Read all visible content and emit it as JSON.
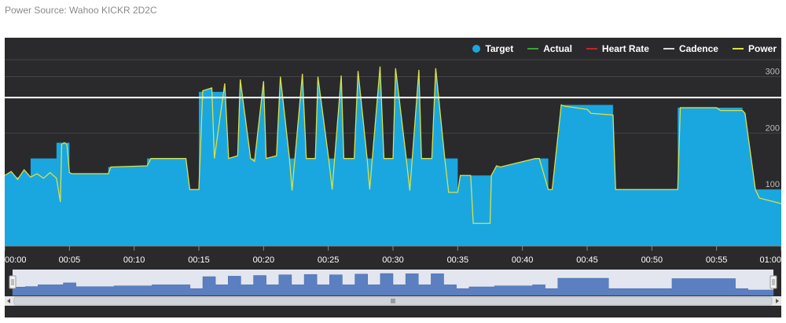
{
  "header": {
    "power_source": "Power Source: Wahoo KICKR 2D2C"
  },
  "legend": [
    {
      "key": "target",
      "label": "Target",
      "color": "#1aa7df",
      "symbol": "dot"
    },
    {
      "key": "actual",
      "label": "Actual",
      "color": "#3aa335",
      "symbol": "line"
    },
    {
      "key": "heart_rate",
      "label": "Heart Rate",
      "color": "#c0262d",
      "symbol": "line"
    },
    {
      "key": "cadence",
      "label": "Cadence",
      "color": "#d8d8d8",
      "symbol": "line"
    },
    {
      "key": "power",
      "label": "Power",
      "color": "#d8e04a",
      "symbol": "line"
    }
  ],
  "colors": {
    "background": "#2a2a2c",
    "target": "#1aa7df",
    "power": "#d8e04a",
    "cadence": "#ffffff",
    "navigator_fill": "#5b7fc0",
    "navigator_bg": "#e3e6ee"
  },
  "chart_data": {
    "type": "area",
    "x_unit": "minutes",
    "xlim": [
      0,
      60
    ],
    "ylim": [
      0,
      330
    ],
    "y_ticks": [
      {
        "value": 100,
        "label": "100"
      },
      {
        "value": 200,
        "label": "200"
      },
      {
        "value": 300,
        "label": "300"
      }
    ],
    "x_ticks": [
      {
        "value": 0,
        "label": "00:00"
      },
      {
        "value": 5,
        "label": "00:05"
      },
      {
        "value": 10,
        "label": "00:10"
      },
      {
        "value": 15,
        "label": "00:15"
      },
      {
        "value": 20,
        "label": "00:20"
      },
      {
        "value": 25,
        "label": "00:25"
      },
      {
        "value": 30,
        "label": "00:30"
      },
      {
        "value": 35,
        "label": "00:35"
      },
      {
        "value": 40,
        "label": "00:40"
      },
      {
        "value": 45,
        "label": "00:45"
      },
      {
        "value": 50,
        "label": "00:50"
      },
      {
        "value": 55,
        "label": "00:55"
      },
      {
        "value": 60,
        "label": "01:00"
      }
    ],
    "cadence_reference": 263,
    "series": [
      {
        "name": "Target",
        "x": [
          0,
          2,
          2,
          4,
          4,
          5,
          5,
          8,
          8,
          11,
          11,
          14,
          14,
          15,
          15,
          17,
          17,
          19,
          19,
          21,
          21,
          23,
          23,
          25,
          25,
          27,
          27,
          29,
          29,
          31,
          31,
          33,
          33,
          35,
          35,
          36,
          36,
          38,
          38,
          41,
          41,
          42,
          42,
          43,
          43,
          47,
          47,
          50,
          50,
          52,
          52,
          57,
          57,
          60
        ],
        "values": [
          122,
          122,
          155,
          155,
          183,
          183,
          128,
          128,
          140,
          140,
          155,
          155,
          100,
          100,
          273,
          273,
          155,
          155,
          155,
          155,
          155,
          155,
          155,
          155,
          155,
          155,
          155,
          155,
          155,
          155,
          155,
          155,
          155,
          155,
          100,
          100,
          125,
          125,
          140,
          140,
          155,
          155,
          100,
          100,
          250,
          250,
          100,
          100,
          100,
          100,
          245,
          245,
          100,
          100
        ]
      },
      {
        "name": "Power",
        "x": [
          0,
          0.5,
          1,
          1.5,
          2,
          2.5,
          3,
          3.5,
          4,
          4.3,
          4.4,
          4.6,
          4.8,
          5,
          5.2,
          8,
          8.2,
          11,
          11.3,
          14,
          14.3,
          15,
          15.3,
          16,
          16.2,
          17,
          17.3,
          18,
          18.2,
          19,
          19.3,
          20,
          20.2,
          21,
          21.3,
          22,
          22.2,
          23,
          23.3,
          24,
          24.2,
          25,
          25.3,
          26,
          26.2,
          27,
          27.3,
          28,
          28.2,
          29,
          29.3,
          30,
          30.2,
          31,
          31.3,
          32,
          32.2,
          33,
          33.3,
          34,
          34.3,
          35,
          35.2,
          36,
          36.2,
          37.5,
          37.6,
          38,
          38.3,
          41,
          41.3,
          42,
          42.3,
          43,
          43.2,
          45,
          45.3,
          47,
          47.2,
          50,
          50.3,
          52,
          52.2,
          55,
          55.3,
          57,
          57.2,
          58,
          58.3,
          60
        ],
        "values": [
          125,
          132,
          118,
          135,
          122,
          128,
          120,
          130,
          120,
          78,
          180,
          183,
          180,
          130,
          128,
          128,
          140,
          142,
          155,
          155,
          100,
          100,
          275,
          280,
          155,
          288,
          155,
          160,
          295,
          155,
          150,
          292,
          155,
          160,
          300,
          155,
          98,
          305,
          155,
          155,
          300,
          160,
          100,
          302,
          155,
          155,
          310,
          155,
          100,
          318,
          155,
          155,
          315,
          160,
          98,
          312,
          155,
          155,
          315,
          155,
          95,
          95,
          125,
          125,
          40,
          40,
          125,
          142,
          140,
          155,
          155,
          100,
          100,
          250,
          248,
          242,
          235,
          232,
          100,
          100,
          100,
          100,
          245,
          245,
          240,
          240,
          235,
          100,
          85,
          75
        ]
      }
    ],
    "navigator_x": [
      0,
      1,
      2,
      4,
      5,
      8,
      11,
      14,
      15,
      16,
      17,
      18,
      19,
      20,
      21,
      22,
      23,
      24,
      25,
      26,
      27,
      28,
      29,
      30,
      31,
      32,
      33,
      34,
      35,
      36,
      38,
      41,
      42,
      43,
      47,
      50,
      52,
      57,
      58,
      60
    ],
    "navigator_values": [
      122,
      130,
      155,
      183,
      128,
      140,
      155,
      100,
      273,
      155,
      280,
      155,
      290,
      155,
      300,
      155,
      305,
      155,
      300,
      155,
      310,
      155,
      318,
      155,
      315,
      155,
      315,
      155,
      100,
      125,
      140,
      155,
      100,
      250,
      100,
      100,
      245,
      100,
      80,
      70
    ]
  }
}
